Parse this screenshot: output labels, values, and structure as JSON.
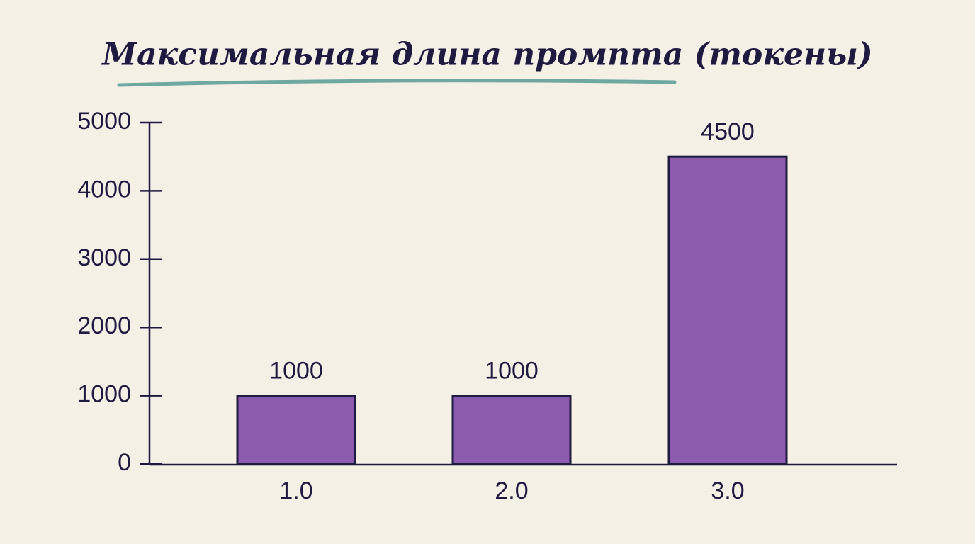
{
  "chart_data": {
    "type": "bar",
    "title": "Максимальная длина промпта (токены)",
    "categories": [
      "1.0",
      "2.0",
      "3.0"
    ],
    "values": [
      1000,
      1000,
      4500
    ],
    "color": "#8b5cad",
    "ylim": [
      0,
      5000
    ],
    "yticks": [
      0,
      1000,
      2000,
      3000,
      4000,
      5000
    ],
    "grid": false
  }
}
